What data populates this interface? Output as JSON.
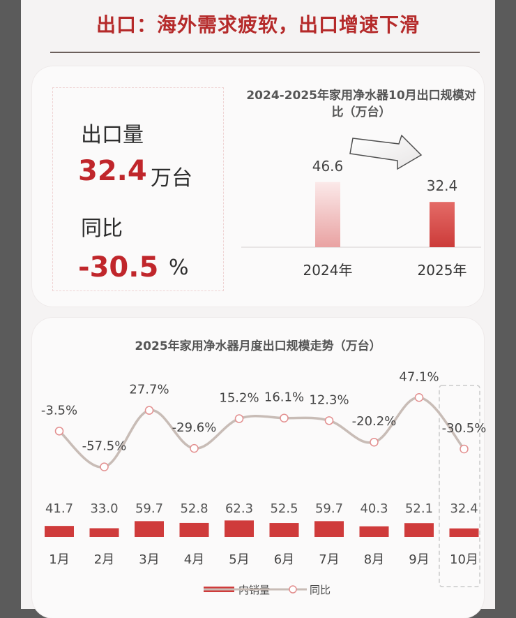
{
  "page_title": "出口：海外需求疲软，出口增速下滑",
  "kpi": {
    "volume_label": "出口量",
    "volume_value": "32.4",
    "volume_unit": "万台",
    "yoy_label": "同比",
    "yoy_value": "-30.5",
    "yoy_unit": "%"
  },
  "chart_data": [
    {
      "type": "bar",
      "title": "2024-2025年家用净水器10月出口规模对比（万台）",
      "categories": [
        "2024年",
        "2025年"
      ],
      "values": [
        46.6,
        32.4
      ],
      "ylim": [
        0,
        50
      ],
      "colors": [
        "#f2c9c9",
        "#d9534f"
      ]
    },
    {
      "type": "bar+line",
      "title": "2025年家用净水器月度出口规模走势（万台）",
      "categories": [
        "1月",
        "2月",
        "3月",
        "4月",
        "5月",
        "6月",
        "7月",
        "8月",
        "9月",
        "10月"
      ],
      "series": [
        {
          "name": "内销量",
          "type": "bar",
          "values": [
            41.7,
            33.0,
            59.7,
            52.8,
            62.3,
            52.5,
            59.7,
            40.3,
            52.1,
            32.4
          ],
          "labels": [
            "41.7",
            "33.0",
            "59.7",
            "52.8",
            "62.3",
            "52.5",
            "59.7",
            "40.3",
            "52.1",
            "32.4"
          ]
        },
        {
          "name": "同比",
          "type": "line",
          "values": [
            -3.5,
            -57.5,
            27.7,
            -29.6,
            15.2,
            16.1,
            12.3,
            -20.2,
            47.1,
            -30.5
          ],
          "labels": [
            "-3.5%",
            "-57.5%",
            "27.7%",
            "-29.6%",
            "15.2%",
            "16.1%",
            "12.3%",
            "-20.2%",
            "47.1%",
            "-30.5%"
          ]
        }
      ],
      "highlight_category": "10月",
      "legend": "bottom-center",
      "colors": {
        "bar": "#cf3b3b",
        "line": "#c8bcb6",
        "marker": "#e38f8f"
      }
    }
  ]
}
